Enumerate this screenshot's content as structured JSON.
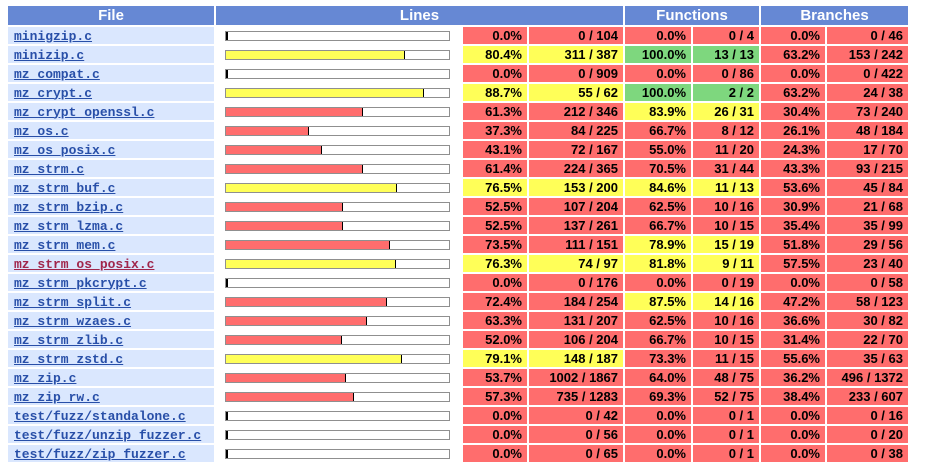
{
  "headers": {
    "file": "File",
    "lines": "Lines",
    "functions": "Functions",
    "branches": "Branches"
  },
  "colors": {
    "low": "#ff6d6d",
    "medium": "#ffff58",
    "high": "#7ed77e",
    "header": "#6688d4",
    "file_cell": "#dae7fe",
    "link": "#284fa8",
    "visited_link": "#a0264c"
  },
  "rows": [
    {
      "file": "minigzip.c",
      "visited": false,
      "line_bar": 0.0,
      "line_pct": "0.0%",
      "line_ratio": "0 / 104",
      "line_level": "lo",
      "func_pct": "0.0%",
      "func_ratio": "0 / 4",
      "func_level": "lo",
      "br_pct": "0.0%",
      "br_ratio": "0 / 46",
      "br_level": "lo"
    },
    {
      "file": "minizip.c",
      "visited": false,
      "line_bar": 80.4,
      "line_pct": "80.4%",
      "line_ratio": "311 / 387",
      "line_level": "med",
      "func_pct": "100.0%",
      "func_ratio": "13 / 13",
      "func_level": "hi",
      "br_pct": "63.2%",
      "br_ratio": "153 / 242",
      "br_level": "lo"
    },
    {
      "file": "mz_compat.c",
      "visited": false,
      "line_bar": 0.0,
      "line_pct": "0.0%",
      "line_ratio": "0 / 909",
      "line_level": "lo",
      "func_pct": "0.0%",
      "func_ratio": "0 / 86",
      "func_level": "lo",
      "br_pct": "0.0%",
      "br_ratio": "0 / 422",
      "br_level": "lo"
    },
    {
      "file": "mz_crypt.c",
      "visited": false,
      "line_bar": 88.7,
      "line_pct": "88.7%",
      "line_ratio": "55 / 62",
      "line_level": "med",
      "func_pct": "100.0%",
      "func_ratio": "2 / 2",
      "func_level": "hi",
      "br_pct": "63.2%",
      "br_ratio": "24 / 38",
      "br_level": "lo"
    },
    {
      "file": "mz_crypt_openssl.c",
      "visited": false,
      "line_bar": 61.3,
      "line_pct": "61.3%",
      "line_ratio": "212 / 346",
      "line_level": "lo",
      "func_pct": "83.9%",
      "func_ratio": "26 / 31",
      "func_level": "med",
      "br_pct": "30.4%",
      "br_ratio": "73 / 240",
      "br_level": "lo"
    },
    {
      "file": "mz_os.c",
      "visited": false,
      "line_bar": 37.3,
      "line_pct": "37.3%",
      "line_ratio": "84 / 225",
      "line_level": "lo",
      "func_pct": "66.7%",
      "func_ratio": "8 / 12",
      "func_level": "lo",
      "br_pct": "26.1%",
      "br_ratio": "48 / 184",
      "br_level": "lo"
    },
    {
      "file": "mz_os_posix.c",
      "visited": false,
      "line_bar": 43.1,
      "line_pct": "43.1%",
      "line_ratio": "72 / 167",
      "line_level": "lo",
      "func_pct": "55.0%",
      "func_ratio": "11 / 20",
      "func_level": "lo",
      "br_pct": "24.3%",
      "br_ratio": "17 / 70",
      "br_level": "lo"
    },
    {
      "file": "mz_strm.c",
      "visited": false,
      "line_bar": 61.4,
      "line_pct": "61.4%",
      "line_ratio": "224 / 365",
      "line_level": "lo",
      "func_pct": "70.5%",
      "func_ratio": "31 / 44",
      "func_level": "lo",
      "br_pct": "43.3%",
      "br_ratio": "93 / 215",
      "br_level": "lo"
    },
    {
      "file": "mz_strm_buf.c",
      "visited": false,
      "line_bar": 76.5,
      "line_pct": "76.5%",
      "line_ratio": "153 / 200",
      "line_level": "med",
      "func_pct": "84.6%",
      "func_ratio": "11 / 13",
      "func_level": "med",
      "br_pct": "53.6%",
      "br_ratio": "45 / 84",
      "br_level": "lo"
    },
    {
      "file": "mz_strm_bzip.c",
      "visited": false,
      "line_bar": 52.5,
      "line_pct": "52.5%",
      "line_ratio": "107 / 204",
      "line_level": "lo",
      "func_pct": "62.5%",
      "func_ratio": "10 / 16",
      "func_level": "lo",
      "br_pct": "30.9%",
      "br_ratio": "21 / 68",
      "br_level": "lo"
    },
    {
      "file": "mz_strm_lzma.c",
      "visited": false,
      "line_bar": 52.5,
      "line_pct": "52.5%",
      "line_ratio": "137 / 261",
      "line_level": "lo",
      "func_pct": "66.7%",
      "func_ratio": "10 / 15",
      "func_level": "lo",
      "br_pct": "35.4%",
      "br_ratio": "35 / 99",
      "br_level": "lo"
    },
    {
      "file": "mz_strm_mem.c",
      "visited": false,
      "line_bar": 73.5,
      "line_pct": "73.5%",
      "line_ratio": "111 / 151",
      "line_level": "lo",
      "func_pct": "78.9%",
      "func_ratio": "15 / 19",
      "func_level": "med",
      "br_pct": "51.8%",
      "br_ratio": "29 / 56",
      "br_level": "lo"
    },
    {
      "file": "mz_strm_os_posix.c",
      "visited": true,
      "line_bar": 76.3,
      "line_pct": "76.3%",
      "line_ratio": "74 / 97",
      "line_level": "med",
      "func_pct": "81.8%",
      "func_ratio": "9 / 11",
      "func_level": "med",
      "br_pct": "57.5%",
      "br_ratio": "23 / 40",
      "br_level": "lo"
    },
    {
      "file": "mz_strm_pkcrypt.c",
      "visited": false,
      "line_bar": 0.0,
      "line_pct": "0.0%",
      "line_ratio": "0 / 176",
      "line_level": "lo",
      "func_pct": "0.0%",
      "func_ratio": "0 / 19",
      "func_level": "lo",
      "br_pct": "0.0%",
      "br_ratio": "0 / 58",
      "br_level": "lo"
    },
    {
      "file": "mz_strm_split.c",
      "visited": false,
      "line_bar": 72.4,
      "line_pct": "72.4%",
      "line_ratio": "184 / 254",
      "line_level": "lo",
      "func_pct": "87.5%",
      "func_ratio": "14 / 16",
      "func_level": "med",
      "br_pct": "47.2%",
      "br_ratio": "58 / 123",
      "br_level": "lo"
    },
    {
      "file": "mz_strm_wzaes.c",
      "visited": false,
      "line_bar": 63.3,
      "line_pct": "63.3%",
      "line_ratio": "131 / 207",
      "line_level": "lo",
      "func_pct": "62.5%",
      "func_ratio": "10 / 16",
      "func_level": "lo",
      "br_pct": "36.6%",
      "br_ratio": "30 / 82",
      "br_level": "lo"
    },
    {
      "file": "mz_strm_zlib.c",
      "visited": false,
      "line_bar": 52.0,
      "line_pct": "52.0%",
      "line_ratio": "106 / 204",
      "line_level": "lo",
      "func_pct": "66.7%",
      "func_ratio": "10 / 15",
      "func_level": "lo",
      "br_pct": "31.4%",
      "br_ratio": "22 / 70",
      "br_level": "lo"
    },
    {
      "file": "mz_strm_zstd.c",
      "visited": false,
      "line_bar": 79.1,
      "line_pct": "79.1%",
      "line_ratio": "148 / 187",
      "line_level": "med",
      "func_pct": "73.3%",
      "func_ratio": "11 / 15",
      "func_level": "lo",
      "br_pct": "55.6%",
      "br_ratio": "35 / 63",
      "br_level": "lo"
    },
    {
      "file": "mz_zip.c",
      "visited": false,
      "line_bar": 53.7,
      "line_pct": "53.7%",
      "line_ratio": "1002 / 1867",
      "line_level": "lo",
      "func_pct": "64.0%",
      "func_ratio": "48 / 75",
      "func_level": "lo",
      "br_pct": "36.2%",
      "br_ratio": "496 / 1372",
      "br_level": "lo"
    },
    {
      "file": "mz_zip_rw.c",
      "visited": false,
      "line_bar": 57.3,
      "line_pct": "57.3%",
      "line_ratio": "735 / 1283",
      "line_level": "lo",
      "func_pct": "69.3%",
      "func_ratio": "52 / 75",
      "func_level": "lo",
      "br_pct": "38.4%",
      "br_ratio": "233 / 607",
      "br_level": "lo"
    },
    {
      "file": "test/fuzz/standalone.c",
      "visited": false,
      "line_bar": 0.0,
      "line_pct": "0.0%",
      "line_ratio": "0 / 42",
      "line_level": "lo",
      "func_pct": "0.0%",
      "func_ratio": "0 / 1",
      "func_level": "lo",
      "br_pct": "0.0%",
      "br_ratio": "0 / 16",
      "br_level": "lo"
    },
    {
      "file": "test/fuzz/unzip_fuzzer.c",
      "visited": false,
      "line_bar": 0.0,
      "line_pct": "0.0%",
      "line_ratio": "0 / 56",
      "line_level": "lo",
      "func_pct": "0.0%",
      "func_ratio": "0 / 1",
      "func_level": "lo",
      "br_pct": "0.0%",
      "br_ratio": "0 / 20",
      "br_level": "lo"
    },
    {
      "file": "test/fuzz/zip_fuzzer.c",
      "visited": false,
      "line_bar": 0.0,
      "line_pct": "0.0%",
      "line_ratio": "0 / 65",
      "line_level": "lo",
      "func_pct": "0.0%",
      "func_ratio": "0 / 1",
      "func_level": "lo",
      "br_pct": "0.0%",
      "br_ratio": "0 / 38",
      "br_level": "lo"
    }
  ]
}
